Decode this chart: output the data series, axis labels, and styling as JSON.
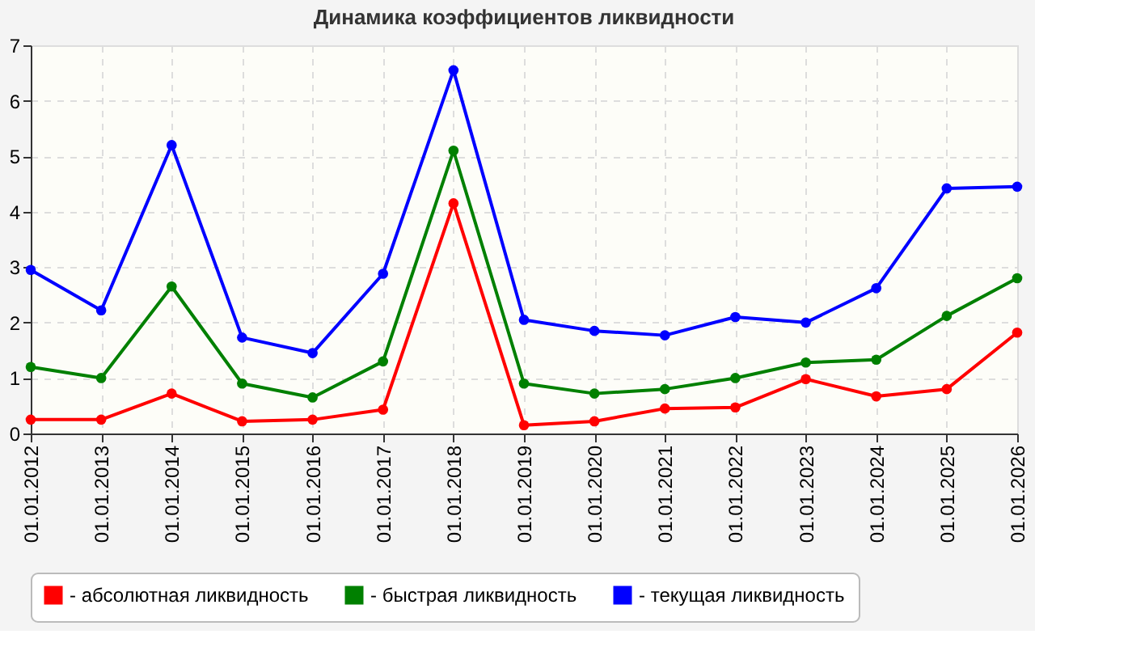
{
  "chart_data": {
    "type": "line",
    "title": "Динамика коэффициентов ликвидности",
    "categories": [
      "01.01.2012",
      "01.01.2013",
      "01.01.2014",
      "01.01.2015",
      "01.01.2016",
      "01.01.2017",
      "01.01.2018",
      "01.01.2019",
      "01.01.2020",
      "01.01.2021",
      "01.01.2022",
      "01.01.2023",
      "01.01.2024",
      "01.01.2025",
      "01.01.2026"
    ],
    "series": [
      {
        "name": "- абсолютная ликвидность",
        "color": "#ff0000",
        "values": [
          0.25,
          0.25,
          0.72,
          0.22,
          0.25,
          0.43,
          4.15,
          0.15,
          0.22,
          0.45,
          0.47,
          0.98,
          0.67,
          0.8,
          1.82
        ]
      },
      {
        "name": "- быстрая ликвидность",
        "color": "#008000",
        "values": [
          1.2,
          1.0,
          2.65,
          0.9,
          0.65,
          1.3,
          5.1,
          0.9,
          0.72,
          0.8,
          1.0,
          1.28,
          1.33,
          2.12,
          2.8
        ]
      },
      {
        "name": "- текущая ликвидность",
        "color": "#0000ff",
        "values": [
          2.95,
          2.22,
          5.2,
          1.73,
          1.45,
          2.88,
          6.55,
          2.05,
          1.85,
          1.77,
          2.1,
          2.0,
          2.62,
          4.42,
          4.45
        ]
      }
    ],
    "ylim": [
      0,
      7
    ],
    "yticks": [
      0,
      1,
      2,
      3,
      4,
      5,
      6,
      7
    ],
    "grid": true,
    "legend": "bottom",
    "marker": "circle",
    "line_style": "solid"
  }
}
